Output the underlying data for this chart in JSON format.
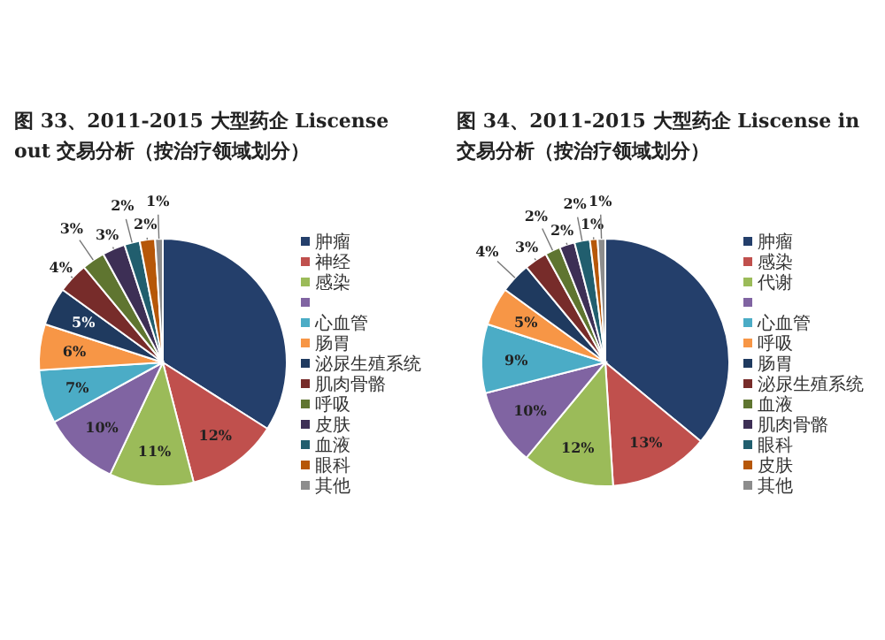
{
  "chart_data": [
    {
      "type": "pie",
      "title": "图 33、2011-2015 大型药企 Liscense out 交易分析（按治疗领域划分）",
      "legend": "right",
      "categories": [
        "肿瘤",
        "神经",
        "感染",
        null,
        "心血管",
        "肠胃",
        "泌尿生殖系统",
        "肌肉骨骼",
        "呼吸",
        "皮肤",
        "血液",
        "眼科",
        "其他"
      ],
      "values": [
        34,
        12,
        11,
        10,
        7,
        6,
        5,
        4,
        3,
        3,
        2,
        2,
        1
      ],
      "value_labels": [
        null,
        "12%",
        "11%",
        "10%",
        "7%",
        "6%",
        "5%",
        "4%",
        "3%",
        "3%",
        "2%",
        "2%",
        "1%"
      ],
      "colors": [
        "#243f6b",
        "#c0504d",
        "#9bbb59",
        "#8064a2",
        "#4bacc6",
        "#f79646",
        "#1f3a5f",
        "#772c2a",
        "#5f7530",
        "#3d2f55",
        "#215e6e",
        "#b65708",
        "#8c8c8c"
      ]
    },
    {
      "type": "pie",
      "title": "图 34、2011-2015 大型药企 Liscense in 交易分析（按治疗领域划分）",
      "legend": "right",
      "categories": [
        "肿瘤",
        "感染",
        "代谢",
        null,
        "心血管",
        "呼吸",
        "肠胃",
        "泌尿生殖系统",
        "血液",
        "肌肉骨骼",
        "眼科",
        "皮肤",
        "其他"
      ],
      "values": [
        36,
        13,
        12,
        10,
        9,
        5,
        4,
        3,
        2,
        2,
        2,
        1,
        1
      ],
      "value_labels": [
        null,
        "13%",
        "12%",
        "10%",
        "9%",
        "5%",
        "4%",
        "3%",
        "2%",
        "2%",
        "2%",
        "1%",
        "1%"
      ],
      "colors": [
        "#243f6b",
        "#c0504d",
        "#9bbb59",
        "#8064a2",
        "#4bacc6",
        "#f79646",
        "#1f3a5f",
        "#772c2a",
        "#5f7530",
        "#3d2f55",
        "#215e6e",
        "#b65708",
        "#8c8c8c"
      ]
    }
  ]
}
